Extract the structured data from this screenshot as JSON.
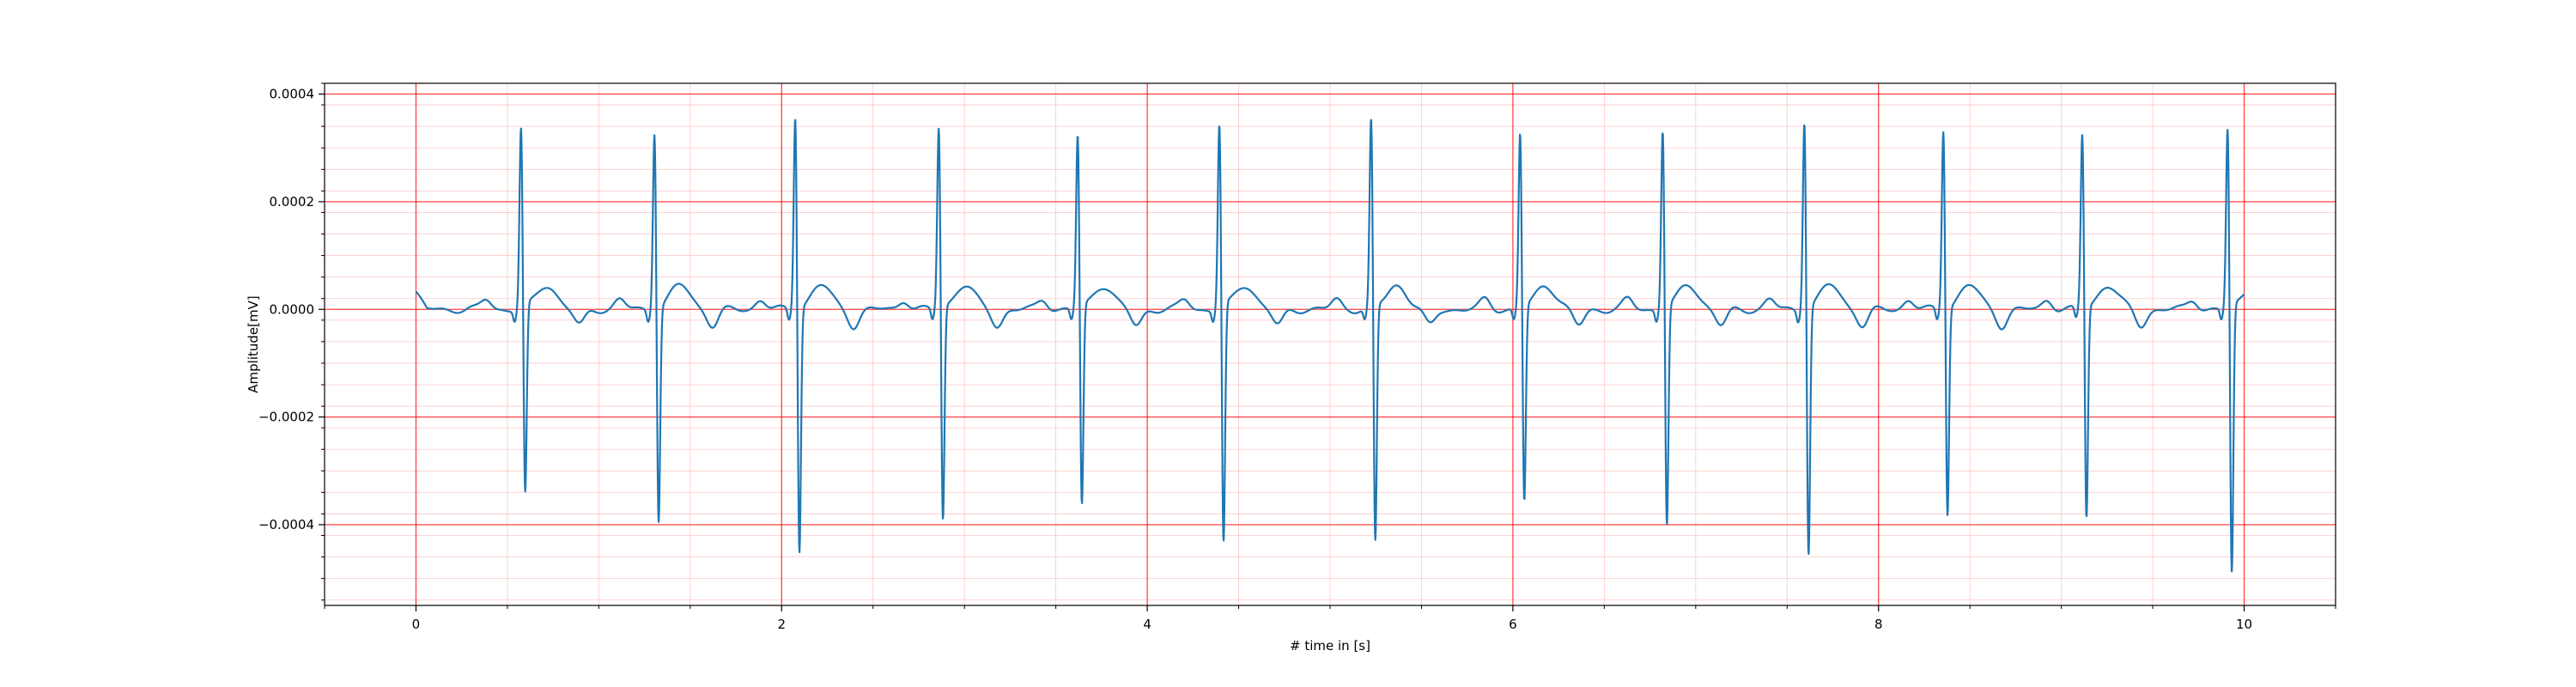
{
  "chart_data": {
    "type": "line",
    "title": "",
    "xlabel": "# time in [s]",
    "ylabel": "Amplitude[mV]",
    "xlim": [
      -0.5,
      10.5
    ],
    "ylim": [
      -0.00055,
      0.00042
    ],
    "x_ticks": [
      0,
      2,
      4,
      6,
      8,
      10
    ],
    "x_tick_labels": [
      "0",
      "2",
      "4",
      "6",
      "8",
      "10"
    ],
    "y_ticks": [
      0.0004,
      0.0002,
      0.0,
      -0.0002,
      -0.0004
    ],
    "y_tick_labels": [
      "0.0004",
      "0.0002",
      "0.0000",
      "−0.0002",
      "−0.0004"
    ],
    "grid": {
      "major": true,
      "minor": true,
      "major_color": "#ff0000",
      "minor_color": "#ff9999"
    },
    "line_color": "#1f77b4",
    "series": [
      {
        "name": "",
        "beats": [
          {
            "t": 0.575,
            "r": 0.000345,
            "s": -0.00036
          },
          {
            "t": 1.305,
            "r": 0.000342,
            "s": -0.000405
          },
          {
            "t": 2.075,
            "r": 0.000372,
            "s": -0.000462
          },
          {
            "t": 2.86,
            "r": 0.000348,
            "s": -0.000405
          },
          {
            "t": 3.62,
            "r": 0.000332,
            "s": -0.00038
          },
          {
            "t": 4.395,
            "r": 0.000355,
            "s": -0.000452
          },
          {
            "t": 5.225,
            "r": 0.00036,
            "s": -0.00045
          },
          {
            "t": 6.04,
            "r": 0.000335,
            "s": -0.000372
          },
          {
            "t": 6.82,
            "r": 0.000345,
            "s": -0.000415
          },
          {
            "t": 7.595,
            "r": 0.000365,
            "s": -0.000468
          },
          {
            "t": 8.355,
            "r": 0.000345,
            "s": -0.000392
          },
          {
            "t": 9.115,
            "r": 0.000335,
            "s": -0.000402
          },
          {
            "t": 9.91,
            "r": 0.000345,
            "s": -0.000508
          }
        ],
        "t_start": 0.0,
        "t_end": 10.0
      }
    ]
  }
}
